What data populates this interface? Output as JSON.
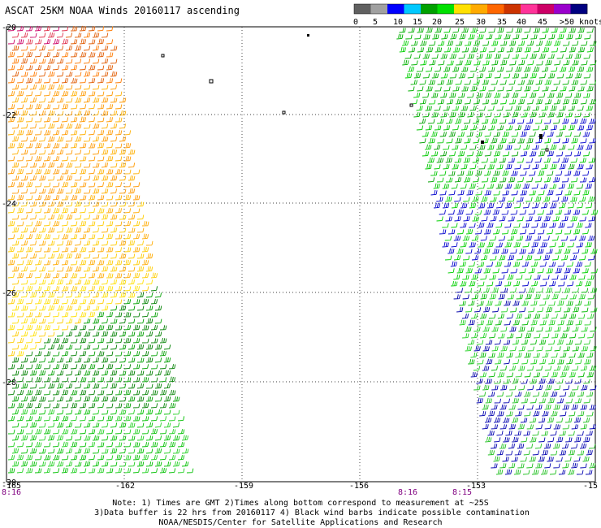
{
  "title": "ASCAT 25KM NOAA Winds 20160117 ascending",
  "legend": {
    "colors": [
      "#606060",
      "#a0a0a0",
      "#0000ff",
      "#00c8ff",
      "#00a000",
      "#00e000",
      "#ffe000",
      "#ffaa00",
      "#ff6600",
      "#cc3300",
      "#ff3399",
      "#cc0066",
      "#9900cc",
      "#000080"
    ],
    "ticks": [
      "0",
      "5",
      "10",
      "15",
      "20",
      "25",
      "30",
      "35",
      "40",
      "45",
      ">50 knots"
    ]
  },
  "axes": {
    "lat_labels": [
      "-20",
      "-22",
      "-24",
      "-26",
      "-28",
      "-30"
    ],
    "lon_labels": [
      "-165",
      "-162",
      "-159",
      "-156",
      "-153",
      "-15"
    ]
  },
  "time_labels": {
    "left": "8:16",
    "mid": "8:16",
    "right": "8:15"
  },
  "notes": [
    "Note: 1) Times are GMT 2)Times along bottom correspond to measurement at ~25S",
    "3)Data buffer is 22 hrs from 20160117 4) Black wind barbs indicate possible contamination",
    "NOAA/NESDIS/Center for Satellite Applications and Research"
  ]
}
